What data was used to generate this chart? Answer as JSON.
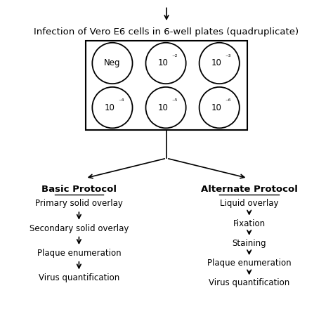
{
  "bg_color": "#ffffff",
  "title_text": "Infection of Vero E6 cells in 6-well plates (quadruplicate)",
  "title_fontsize": 9.5,
  "well_labels": [
    [
      "Neg",
      "10",
      "10"
    ],
    [
      "10",
      "10",
      "10"
    ]
  ],
  "well_exponents": [
    [
      "",
      "⁻²",
      "⁻³"
    ],
    [
      "⁻⁴",
      "⁻⁵",
      "⁻⁶"
    ]
  ],
  "basic_protocol_title": "Basic Protocol",
  "basic_steps": [
    "Primary solid overlay",
    "Secondary solid overlay",
    "Plaque enumeration",
    "Virus quantification"
  ],
  "alt_protocol_title": "Alternate Protocol",
  "alt_steps": [
    "Liquid overlay",
    "Fixation",
    "Staining",
    "Plaque enumeration",
    "Virus quantification"
  ],
  "text_color": "#000000",
  "line_color": "#000000",
  "step_fontsize": 8.5,
  "protocol_title_fontsize": 9.5
}
